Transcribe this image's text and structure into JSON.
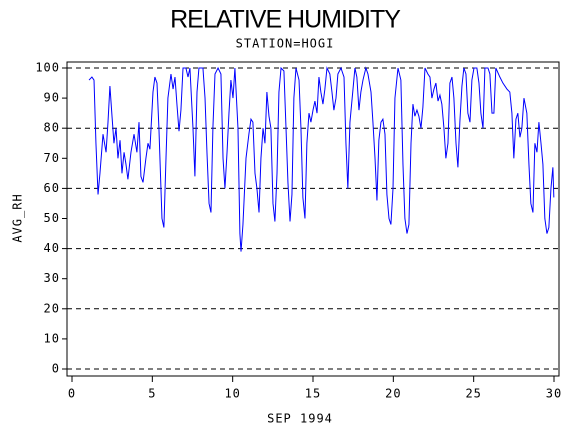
{
  "chart_data": {
    "type": "line",
    "title": "RELATIVE HUMIDITY",
    "subtitle": "STATION=HOGI",
    "x_label": "SEP 1994",
    "y_label": "AVG_RH",
    "xlim": [
      0,
      30
    ],
    "xticks": [
      0,
      5,
      10,
      15,
      20,
      25,
      30
    ],
    "ylim": [
      0,
      100
    ],
    "yticks": [
      0,
      10,
      20,
      30,
      40,
      50,
      60,
      70,
      80,
      90,
      100
    ],
    "grid_lines": [
      0,
      20,
      40,
      60,
      80,
      100
    ],
    "series": [
      {
        "name": "AVG_RH",
        "color": "#0000ff",
        "x": [
          1.06,
          1.24,
          1.37,
          1.49,
          1.62,
          1.74,
          1.93,
          2.12,
          2.24,
          2.36,
          2.49,
          2.61,
          2.74,
          2.86,
          2.99,
          3.11,
          3.24,
          3.36,
          3.48,
          3.67,
          3.86,
          4.04,
          4.17,
          4.29,
          4.42,
          4.6,
          4.73,
          4.85,
          5.04,
          5.16,
          5.29,
          5.41,
          5.6,
          5.72,
          5.85,
          5.97,
          6.16,
          6.29,
          6.41,
          6.53,
          6.66,
          6.78,
          6.91,
          7.09,
          7.22,
          7.34,
          7.53,
          7.65,
          7.78,
          7.9,
          8.15,
          8.28,
          8.4,
          8.53,
          8.65,
          8.77,
          8.9,
          9.09,
          9.27,
          9.4,
          9.52,
          9.65,
          9.77,
          9.89,
          10.02,
          10.14,
          10.33,
          10.45,
          10.52,
          10.64,
          10.83,
          11.01,
          11.14,
          11.26,
          11.39,
          11.51,
          11.64,
          11.76,
          11.89,
          12.01,
          12.13,
          12.26,
          12.38,
          12.51,
          12.63,
          12.76,
          12.88,
          13.01,
          13.19,
          13.32,
          13.44,
          13.57,
          13.69,
          13.81,
          13.94,
          14.13,
          14.25,
          14.37,
          14.5,
          14.62,
          14.75,
          14.87,
          15,
          15.12,
          15.25,
          15.37,
          15.49,
          15.62,
          15.74,
          15.87,
          16.05,
          16.18,
          16.3,
          16.43,
          16.55,
          16.74,
          16.93,
          17.05,
          17.17,
          17.3,
          17.49,
          17.61,
          17.73,
          17.86,
          17.98,
          18.11,
          18.29,
          18.42,
          18.61,
          18.73,
          18.86,
          18.98,
          19.1,
          19.23,
          19.35,
          19.48,
          19.6,
          19.73,
          19.85,
          19.98,
          20.1,
          20.29,
          20.47,
          20.6,
          20.72,
          20.85,
          20.97,
          21.1,
          21.22,
          21.34,
          21.47,
          21.59,
          21.72,
          21.84,
          21.97,
          22.15,
          22.28,
          22.4,
          22.53,
          22.65,
          22.78,
          22.9,
          23.02,
          23.15,
          23.27,
          23.4,
          23.52,
          23.65,
          23.77,
          23.9,
          24.02,
          24.14,
          24.27,
          24.39,
          24.52,
          24.64,
          24.77,
          24.89,
          25.02,
          25.2,
          25.33,
          25.45,
          25.58,
          25.7,
          25.89,
          26.01,
          26.14,
          26.26,
          26.38,
          26.63,
          26.82,
          27.07,
          27.25,
          27.38,
          27.5,
          27.63,
          27.75,
          27.88,
          28,
          28.13,
          28.31,
          28.44,
          28.56,
          28.69,
          28.81,
          28.94,
          29.06,
          29.19,
          29.31,
          29.43,
          29.56,
          29.68,
          29.81,
          29.93,
          29.99
        ],
        "values": [
          96,
          97,
          96,
          75,
          58,
          65,
          78,
          72,
          82,
          94,
          84,
          75,
          80,
          70,
          76,
          65,
          72,
          68,
          63,
          72,
          78,
          72,
          82,
          64,
          62,
          70,
          75,
          73,
          92,
          97,
          95,
          80,
          50,
          47,
          70,
          90,
          98,
          93,
          97,
          88,
          79,
          86,
          100,
          100,
          97,
          100,
          80,
          64,
          92,
          100,
          100,
          90,
          72,
          55,
          52,
          80,
          98,
          100,
          98,
          70,
          60,
          72,
          85,
          96,
          90,
          100,
          80,
          45,
          39,
          48,
          70,
          78,
          83,
          82,
          65,
          60,
          52,
          70,
          80,
          75,
          92,
          84,
          80,
          55,
          49,
          65,
          92,
          100,
          99,
          80,
          62,
          49,
          58,
          90,
          100,
          96,
          80,
          57,
          50,
          75,
          85,
          82,
          86,
          89,
          85,
          97,
          92,
          88,
          93,
          100,
          98,
          92,
          86,
          90,
          98,
          100,
          97,
          75,
          60,
          82,
          93,
          100,
          97,
          86,
          92,
          96,
          100,
          98,
          92,
          82,
          70,
          56,
          76,
          82,
          83,
          78,
          58,
          50,
          48,
          60,
          90,
          100,
          96,
          68,
          50,
          45,
          48,
          75,
          88,
          84,
          86,
          84,
          80,
          87,
          100,
          98,
          97,
          90,
          93,
          95,
          89,
          91,
          88,
          80,
          70,
          75,
          95,
          97,
          90,
          75,
          67,
          82,
          94,
          100,
          98,
          85,
          82,
          96,
          100,
          100,
          95,
          85,
          80,
          100,
          100,
          98,
          85,
          85,
          100,
          97,
          95,
          93,
          92,
          85,
          70,
          83,
          85,
          77,
          80,
          90,
          85,
          68,
          55,
          52,
          75,
          72,
          82,
          75,
          68,
          50,
          45,
          47,
          60,
          67,
          57
        ]
      }
    ]
  }
}
